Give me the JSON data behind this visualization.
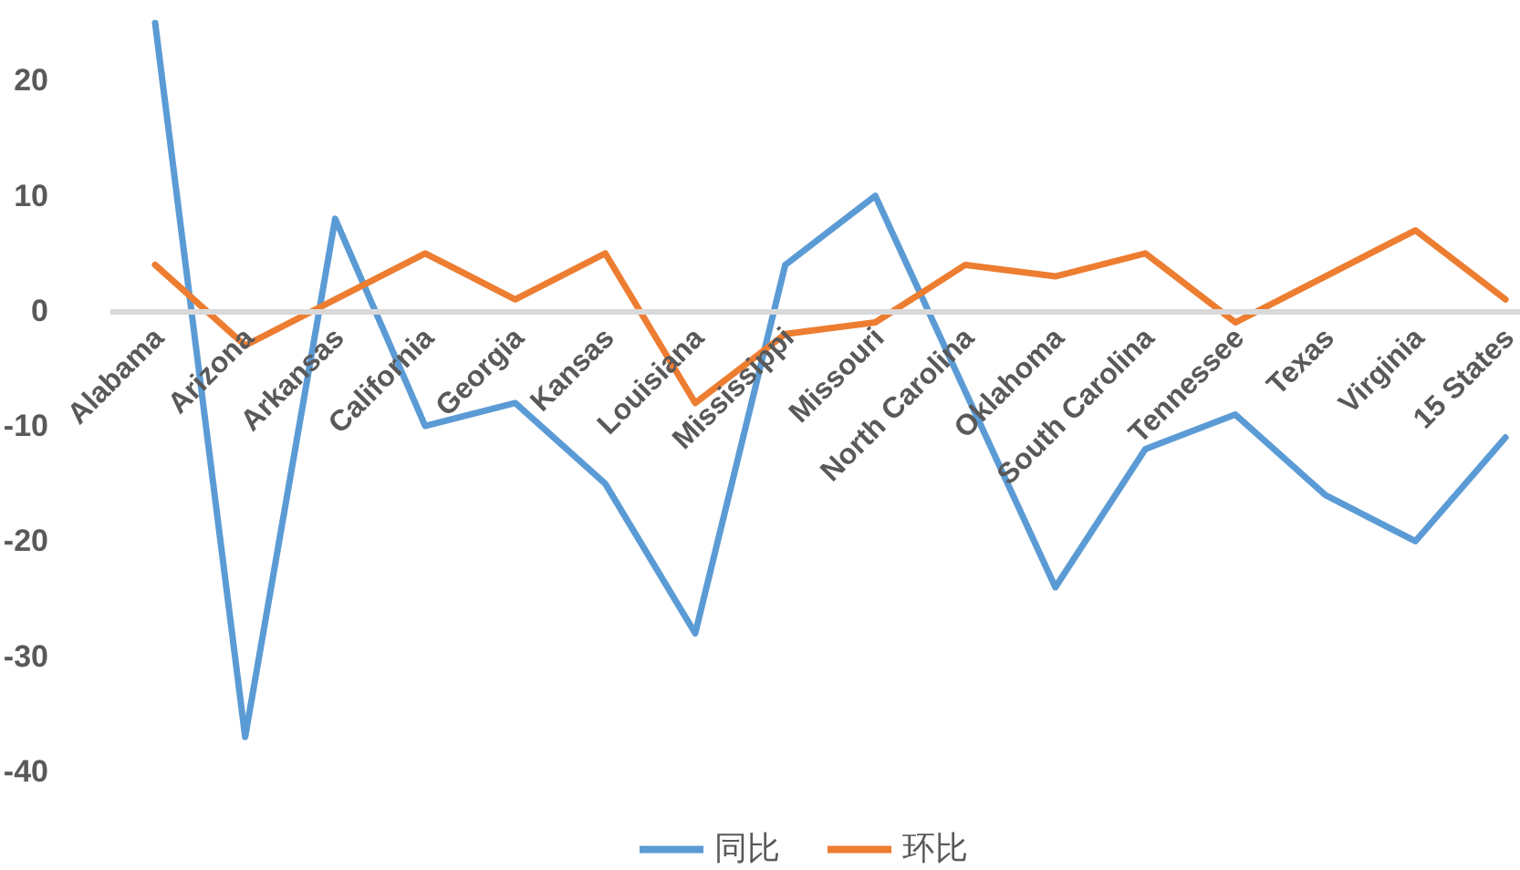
{
  "chart_data": {
    "type": "line",
    "categories": [
      "Alabama",
      "Arizona",
      "Arkansas",
      "California",
      "Georgia",
      "Kansas",
      "Louisiana",
      "Mississippi",
      "Missouri",
      "North Carolina",
      "Oklahoma",
      "South Carolina",
      "Tennessee",
      "Texas",
      "Virginia",
      "15 States"
    ],
    "series": [
      {
        "name": "同比",
        "color": "#5b9bd5",
        "values": [
          25,
          -37,
          8,
          -10,
          -8,
          -15,
          -28,
          4,
          10,
          -7,
          -24,
          -12,
          -9,
          -16,
          -20,
          -11
        ]
      },
      {
        "name": "环比",
        "color": "#ed7d31",
        "values": [
          4,
          -3,
          1,
          5,
          1,
          5,
          -8,
          -2,
          -1,
          4,
          3,
          5,
          -1,
          3,
          7,
          1
        ]
      }
    ],
    "ylim": [
      -40,
      27
    ],
    "yticks": [
      -40,
      -30,
      -20,
      -10,
      0,
      10,
      20
    ],
    "grid": false,
    "legend": "bottom"
  }
}
